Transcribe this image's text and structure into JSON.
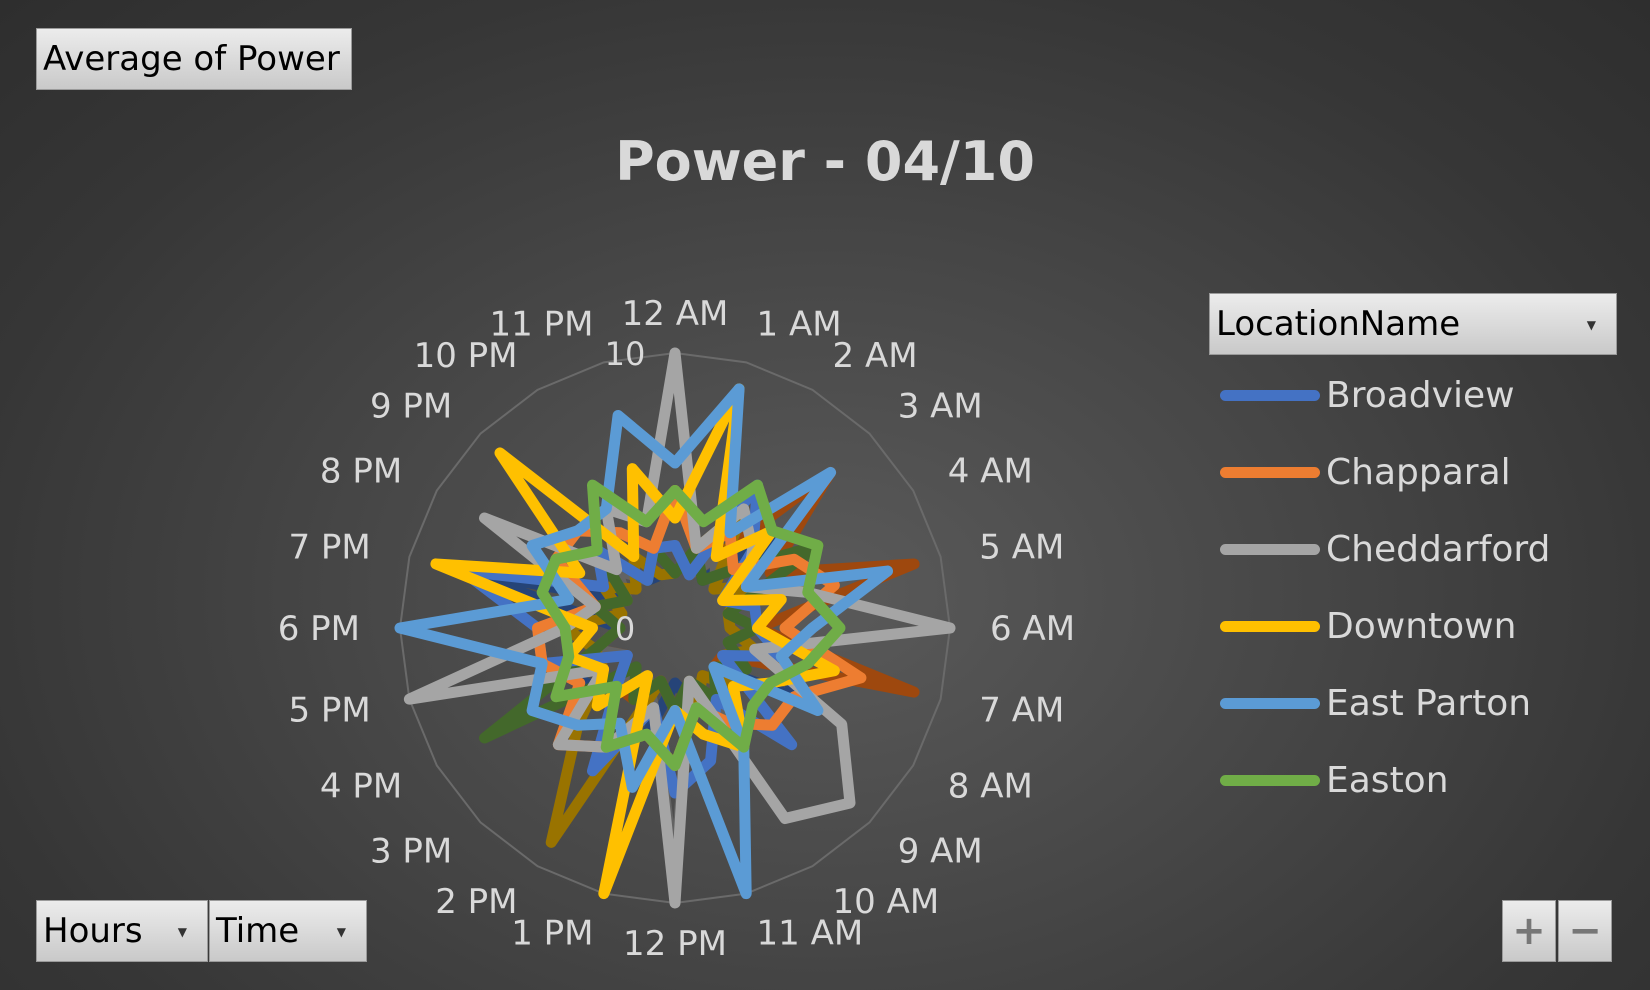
{
  "values_field": "Average  of Power",
  "axis_fields": [
    {
      "label": "Hours"
    },
    {
      "label": "Time"
    }
  ],
  "legend_field": "LocationName",
  "zoom": {
    "in": "+",
    "out": "−"
  },
  "chart_data": {
    "type": "radar",
    "title": "Power - 04/10",
    "categories": [
      "12 AM",
      "1 AM",
      "2 AM",
      "3 AM",
      "4 AM",
      "5 AM",
      "6 AM",
      "7 AM",
      "8 AM",
      "9 AM",
      "10 AM",
      "11 AM",
      "12 PM",
      "1 PM",
      "2 PM",
      "3 PM",
      "4 PM",
      "5 PM",
      "6 PM",
      "7 PM",
      "8 PM",
      "9 PM",
      "10 PM",
      "11 PM"
    ],
    "r_ticks": [
      0,
      10
    ],
    "r_range": [
      0,
      10
    ],
    "grid": true,
    "legend_position": "right",
    "series": [
      {
        "name": "Broadview",
        "color": "#4472c4",
        "values": [
          3,
          2,
          6,
          4,
          2,
          3,
          3,
          4,
          2,
          6,
          3,
          5,
          6,
          3,
          6,
          3,
          2,
          5,
          5,
          8,
          3,
          4,
          2,
          3
        ]
      },
      {
        "name": "Chapparal",
        "color": "#ed7d31",
        "values": [
          5,
          3,
          4,
          3,
          5,
          6,
          4,
          7,
          5,
          5,
          4,
          3,
          5,
          4,
          5,
          6,
          4,
          5,
          5,
          3,
          5,
          5,
          4,
          3
        ]
      },
      {
        "name": "Cheddarford",
        "color": "#a5a5a5",
        "values": [
          10,
          3,
          5,
          4,
          3,
          5,
          10,
          3,
          7,
          9,
          8,
          2,
          10,
          3,
          5,
          6,
          3,
          10,
          4,
          3,
          8,
          3,
          5,
          4
        ]
      },
      {
        "name": "Downtown",
        "color": "#ffc000",
        "values": [
          4,
          9,
          3,
          5,
          2,
          4,
          3,
          6,
          4,
          3,
          5,
          4,
          3,
          10,
          2,
          4,
          3,
          4,
          3,
          9,
          4,
          9,
          3,
          6
        ]
      },
      {
        "name": "East Parton",
        "color": "#5b9bd5",
        "values": [
          6,
          9,
          4,
          8,
          3,
          8,
          5,
          4,
          6,
          2,
          5,
          10,
          3,
          6,
          4,
          5,
          6,
          5,
          10,
          4,
          6,
          5,
          5,
          8
        ]
      },
      {
        "name": "Easton",
        "color": "#70ad47",
        "values": [
          5,
          4,
          6,
          5,
          6,
          5,
          6,
          5,
          4,
          4,
          5,
          3,
          5,
          4,
          5,
          3,
          5,
          4,
          4,
          5,
          5,
          4,
          6,
          4
        ]
      }
    ],
    "hidden_series": [
      {
        "color": "#264478",
        "values": [
          2,
          3,
          2,
          5,
          3,
          2,
          3,
          4,
          5,
          2,
          4,
          3,
          2,
          4,
          5,
          3,
          4,
          3,
          2,
          8,
          2,
          3,
          2,
          2
        ]
      },
      {
        "color": "#9e480e",
        "values": [
          3,
          2,
          3,
          8,
          4,
          9,
          3,
          9,
          2,
          2,
          3,
          2,
          3,
          2,
          3,
          3,
          2,
          3,
          2,
          3,
          2,
          3,
          2,
          3
        ]
      },
      {
        "color": "#636363",
        "values": [
          3,
          2,
          3,
          2,
          3,
          2,
          3,
          2,
          3,
          2,
          4,
          2,
          9,
          3,
          2,
          3,
          2,
          3,
          2,
          3,
          2,
          3,
          2,
          3
        ]
      },
      {
        "color": "#997300",
        "values": [
          2,
          3,
          5,
          2,
          3,
          2,
          2,
          3,
          2,
          3,
          2,
          3,
          3,
          2,
          9,
          5,
          3,
          3,
          4,
          2,
          3,
          2,
          3,
          2
        ]
      },
      {
        "color": "#43682b",
        "values": [
          2,
          3,
          2,
          3,
          6,
          2,
          3,
          2,
          3,
          2,
          3,
          2,
          3,
          2,
          3,
          2,
          8,
          3,
          2,
          3,
          2,
          4,
          2,
          3
        ]
      }
    ]
  }
}
